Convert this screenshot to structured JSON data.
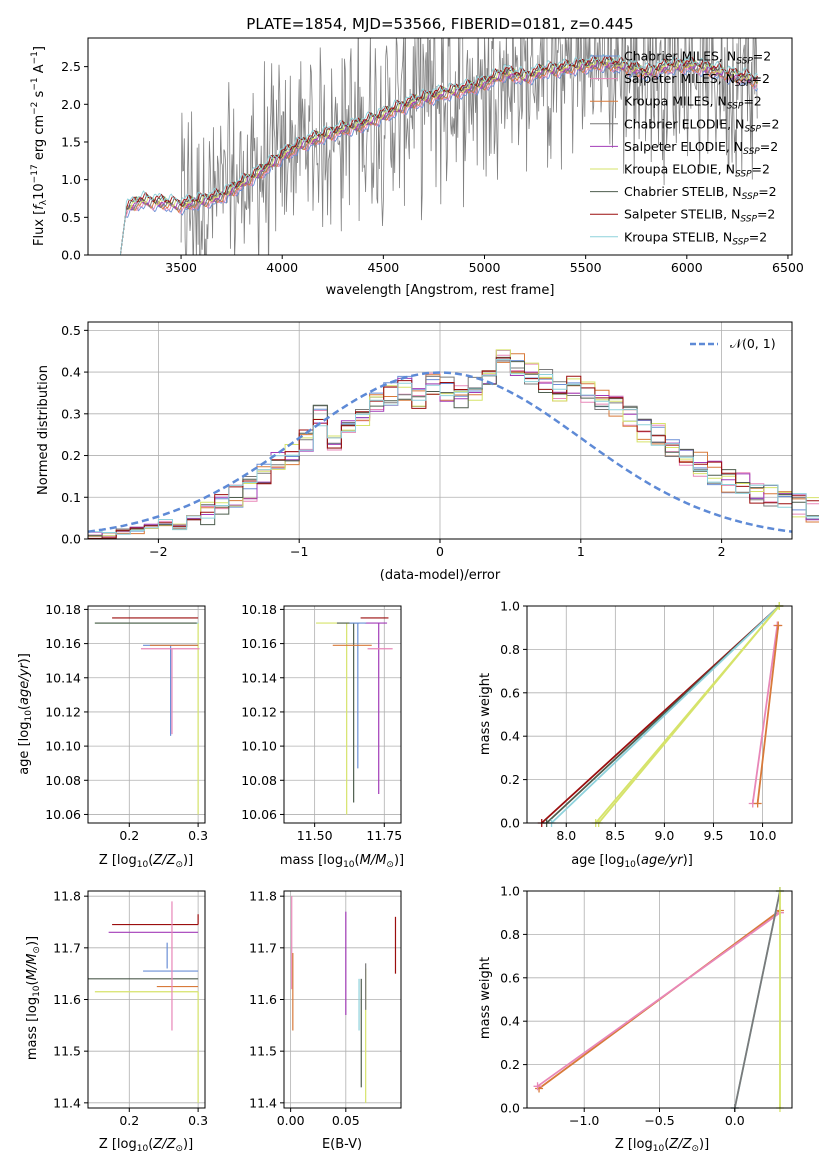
{
  "colors": {
    "chabrier_miles": "#6b8fd6",
    "salpeter_miles": "#e887b8",
    "kroupa_miles": "#d87a3a",
    "chabrier_elodie": "#7a7a7a",
    "salpeter_elodie": "#a23cb8",
    "kroupa_elodie": "#d6e36a",
    "chabrier_stelib": "#4e5d4e",
    "salpeter_stelib": "#9b0e0e",
    "kroupa_stelib": "#8ed2dc",
    "gaussian": "#5e8ad6",
    "data": "#808080"
  },
  "chart_data": [
    {
      "id": "spectrum",
      "type": "line",
      "title": "PLATE=1854, MJD=53566, FIBERID=0181, z=0.445",
      "xlabel": "wavelength [Angstrom, rest frame]",
      "ylabel": "Flux [f_λ 10^-17 erg cm^-2 s^-1 A^-1]",
      "xlim": [
        3040,
        6520
      ],
      "ylim": [
        0,
        2.88
      ],
      "xticks": [
        "3500",
        "4000",
        "4500",
        "5000",
        "5500",
        "6000",
        "6500"
      ],
      "yticks": [
        "0.0",
        "0.5",
        "1.0",
        "1.5",
        "2.0",
        "2.5"
      ],
      "grid": false,
      "legend_position": "top-right",
      "legend": [
        "Chabrier MILES, N_SSP=2",
        "Salpeter MILES, N_SSP=2",
        "Kroupa MILES, N_SSP=2",
        "Chabrier ELODIE, N_SSP=2",
        "Salpeter ELODIE, N_SSP=2",
        "Kroupa ELODIE, N_SSP=2",
        "Chabrier STELIB, N_SSP=2",
        "Salpeter STELIB, N_SSP=2",
        "Kroupa STELIB, N_SSP=2"
      ],
      "model_continuum": {
        "x": [
          3200,
          3230,
          3300,
          3400,
          3500,
          3600,
          3700,
          3800,
          3900,
          4000,
          4100,
          4200,
          4300,
          4400,
          4500,
          4600,
          4700,
          4800,
          4900,
          5000,
          5100,
          5200,
          5300,
          5400,
          5500,
          5600,
          5700,
          5800,
          5900,
          6000,
          6100,
          6200,
          6300,
          6350
        ],
        "y": [
          0.0,
          0.62,
          0.72,
          0.7,
          0.66,
          0.72,
          0.78,
          0.95,
          1.12,
          1.32,
          1.48,
          1.58,
          1.67,
          1.74,
          1.86,
          1.98,
          2.08,
          2.15,
          2.2,
          2.28,
          2.42,
          2.36,
          2.45,
          2.48,
          2.52,
          2.55,
          2.5,
          2.42,
          2.5,
          2.52,
          2.48,
          2.4,
          2.35,
          2.3
        ]
      }
    },
    {
      "id": "residuals",
      "type": "bar",
      "xlabel": "(data-model)/error",
      "ylabel": "Normed distribution",
      "xlim": [
        -2.5,
        2.5
      ],
      "ylim": [
        0,
        0.52
      ],
      "xticks": [
        "−2",
        "−1",
        "0",
        "1",
        "2"
      ],
      "yticks": [
        "0.0",
        "0.1",
        "0.2",
        "0.3",
        "0.4",
        "0.5"
      ],
      "grid": true,
      "legend_position": "top-right",
      "legend": [
        "𝒩(0, 1)"
      ],
      "bin_edges_start": -2.5,
      "bin_width": 0.1,
      "histogram_mean": [
        0.01,
        0.01,
        0.02,
        0.02,
        0.03,
        0.04,
        0.03,
        0.05,
        0.06,
        0.08,
        0.1,
        0.12,
        0.15,
        0.18,
        0.2,
        0.24,
        0.3,
        0.22,
        0.27,
        0.3,
        0.33,
        0.35,
        0.36,
        0.34,
        0.37,
        0.36,
        0.34,
        0.36,
        0.4,
        0.43,
        0.42,
        0.4,
        0.38,
        0.36,
        0.37,
        0.35,
        0.33,
        0.32,
        0.29,
        0.26,
        0.25,
        0.22,
        0.2,
        0.18,
        0.16,
        0.14,
        0.13,
        0.11,
        0.1,
        0.09,
        0.08,
        0.07,
        0.06,
        0.05
      ]
    },
    {
      "id": "age_vs_Z",
      "type": "scatter",
      "xlabel": "Z [log10(Z/Z⊙)]",
      "ylabel": "age [log10(age/yr)]",
      "xlim": [
        0.14,
        0.31
      ],
      "ylim": [
        10.055,
        10.182
      ],
      "xticks": [
        "0.2",
        "0.3"
      ],
      "xtick_values": [
        0.2,
        0.3
      ],
      "yticks": [
        "10.06",
        "10.08",
        "10.10",
        "10.12",
        "10.14",
        "10.16",
        "10.18"
      ],
      "ytick_values": [
        10.06,
        10.08,
        10.1,
        10.12,
        10.14,
        10.16,
        10.18
      ],
      "grid": true,
      "crosses": [
        {
          "model": "salpeter_stelib",
          "x": 0.3,
          "y": 10.175,
          "xerr": [
            0.125,
            0.0
          ],
          "yerr": [
            0.0,
            0.0
          ]
        },
        {
          "model": "kroupa_elodie",
          "x": 0.3,
          "y": 10.172,
          "xerr": [
            0.15,
            0.0
          ],
          "yerr": [
            0.112,
            0.0
          ]
        },
        {
          "model": "kroupa_stelib",
          "x": 0.3,
          "y": 10.172,
          "xerr": [
            0.15,
            0.0
          ],
          "yerr": [
            0.0,
            0.0
          ]
        },
        {
          "model": "chabrier_stelib",
          "x": 0.298,
          "y": 10.172,
          "xerr": [
            0.148,
            0.0
          ],
          "yerr": [
            0.0,
            0.0
          ]
        },
        {
          "model": "chabrier_miles",
          "x": 0.26,
          "y": 10.159,
          "xerr": [
            0.04,
            0.04
          ],
          "yerr": [
            0.053,
            0.0
          ]
        },
        {
          "model": "salpeter_miles",
          "x": 0.262,
          "y": 10.157,
          "xerr": [
            0.045,
            0.04
          ],
          "yerr": [
            0.05,
            0.0
          ]
        },
        {
          "model": "kroupa_miles",
          "x": 0.26,
          "y": 10.159,
          "xerr": [
            0.03,
            0.04
          ],
          "yerr": [
            0.0,
            0.0
          ]
        }
      ]
    },
    {
      "id": "age_vs_mass",
      "type": "scatter",
      "xlabel": "mass [log10(M/M⊙)]",
      "ylabel": "",
      "xlim": [
        11.39,
        11.81
      ],
      "ylim": [
        10.055,
        10.182
      ],
      "xticks": [
        "11.50",
        "11.75"
      ],
      "xtick_values": [
        11.5,
        11.75
      ],
      "yticks": [
        "10.06",
        "10.08",
        "10.10",
        "10.12",
        "10.14",
        "10.16",
        "10.18"
      ],
      "ytick_values": [
        10.06,
        10.08,
        10.1,
        10.12,
        10.14,
        10.16,
        10.18
      ],
      "grid": true,
      "crosses": [
        {
          "model": "salpeter_stelib",
          "x": 11.745,
          "y": 10.175,
          "xerr": [
            0.08,
            0.02
          ],
          "yerr": [
            0.0,
            0.0
          ]
        },
        {
          "model": "kroupa_elodie",
          "x": 11.615,
          "y": 10.172,
          "xerr": [
            0.11,
            0.02
          ],
          "yerr": [
            0.112,
            0.0
          ]
        },
        {
          "model": "salpeter_elodie",
          "x": 11.73,
          "y": 10.172,
          "xerr": [
            0.05,
            0.03
          ],
          "yerr": [
            0.1,
            0.0
          ]
        },
        {
          "model": "chabrier_stelib",
          "x": 11.64,
          "y": 10.172,
          "xerr": [
            0.06,
            0.02
          ],
          "yerr": [
            0.105,
            0.0
          ]
        },
        {
          "model": "chabrier_miles",
          "x": 11.655,
          "y": 10.172,
          "xerr": [
            0.03,
            0.03
          ],
          "yerr": [
            0.085,
            0.0
          ]
        },
        {
          "model": "kroupa_miles",
          "x": 11.625,
          "y": 10.159,
          "xerr": [
            0.06,
            0.08
          ],
          "yerr": [
            0.0,
            0.0
          ]
        },
        {
          "model": "salpeter_miles",
          "x": 11.72,
          "y": 10.157,
          "xerr": [
            0.03,
            0.06
          ],
          "yerr": [
            0.0,
            0.0
          ]
        }
      ]
    },
    {
      "id": "massweight_vs_age",
      "type": "line",
      "xlabel": "age [log10(age/yr)]",
      "ylabel": "mass weight",
      "xlim": [
        7.6,
        10.3
      ],
      "ylim": [
        0.0,
        1.0
      ],
      "xticks": [
        "8.0",
        "8.5",
        "9.0",
        "9.5",
        "10.0"
      ],
      "xtick_values": [
        8.0,
        8.5,
        9.0,
        9.5,
        10.0
      ],
      "yticks": [
        "0.0",
        "0.2",
        "0.4",
        "0.6",
        "0.8",
        "1.0"
      ],
      "ytick_values": [
        0.0,
        0.2,
        0.4,
        0.6,
        0.8,
        1.0
      ],
      "grid": true,
      "series": [
        {
          "model": "salpeter_stelib",
          "x": [
            7.75,
            10.17
          ],
          "y": [
            0.0,
            1.0
          ]
        },
        {
          "model": "chabrier_stelib",
          "x": [
            7.8,
            10.17
          ],
          "y": [
            0.0,
            1.0
          ]
        },
        {
          "model": "kroupa_stelib",
          "x": [
            7.85,
            10.17
          ],
          "y": [
            0.0,
            1.0
          ]
        },
        {
          "model": "kroupa_elodie",
          "x": [
            8.3,
            10.17
          ],
          "y": [
            0.0,
            1.0
          ]
        },
        {
          "model": "kroupa_elodie",
          "x": [
            8.33,
            10.17
          ],
          "y": [
            0.0,
            1.0
          ]
        },
        {
          "model": "salpeter_miles",
          "x": [
            9.9,
            10.15
          ],
          "y": [
            0.09,
            0.91
          ]
        },
        {
          "model": "kroupa_miles",
          "x": [
            9.95,
            10.16
          ],
          "y": [
            0.09,
            0.91
          ]
        }
      ]
    },
    {
      "id": "mass_vs_Z",
      "type": "scatter",
      "xlabel": "Z [log10(Z/Z⊙)]",
      "ylabel": "mass [log10(M/M⊙)]",
      "xlim": [
        0.14,
        0.31
      ],
      "ylim": [
        11.39,
        11.81
      ],
      "xticks": [
        "0.2",
        "0.3"
      ],
      "xtick_values": [
        0.2,
        0.3
      ],
      "yticks": [
        "11.4",
        "11.5",
        "11.6",
        "11.7",
        "11.8"
      ],
      "ytick_values": [
        11.4,
        11.5,
        11.6,
        11.7,
        11.8
      ],
      "grid": true,
      "crosses": [
        {
          "model": "salpeter_stelib",
          "x": 0.3,
          "y": 11.745,
          "xerr": [
            0.125,
            0.0
          ],
          "yerr": [
            0.0,
            0.02
          ]
        },
        {
          "model": "salpeter_elodie",
          "x": 0.3,
          "y": 11.73,
          "xerr": [
            0.13,
            0.0
          ],
          "yerr": [
            0.0,
            0.0
          ]
        },
        {
          "model": "chabrier_miles",
          "x": 0.3,
          "y": 11.655,
          "xerr": [
            0.08,
            0.0
          ],
          "yerr": [
            0.0,
            0.0
          ]
        },
        {
          "model": "chabrier_stelib",
          "x": 0.3,
          "y": 11.64,
          "xerr": [
            0.16,
            0.0
          ],
          "yerr": [
            0.0,
            0.0
          ]
        },
        {
          "model": "kroupa_miles",
          "x": 0.3,
          "y": 11.625,
          "xerr": [
            0.06,
            0.0
          ],
          "yerr": [
            0.0,
            0.0
          ]
        },
        {
          "model": "kroupa_elodie",
          "x": 0.3,
          "y": 11.615,
          "xerr": [
            0.15,
            0.0
          ],
          "yerr": [
            0.215,
            0.0
          ]
        },
        {
          "model": "salpeter_miles",
          "x": 0.262,
          "y": 11.72,
          "xerr": [
            0.0,
            0.0
          ],
          "yerr": [
            0.18,
            0.07
          ]
        },
        {
          "model": "chabrier_miles",
          "x": 0.255,
          "y": 11.66,
          "xerr": [
            0.0,
            0.0
          ],
          "yerr": [
            0.0,
            0.05
          ]
        }
      ]
    },
    {
      "id": "mass_vs_EBV",
      "type": "scatter",
      "xlabel": "E(B-V)",
      "ylabel": "",
      "xlim": [
        -0.006,
        0.1
      ],
      "ylim": [
        11.39,
        11.81
      ],
      "xticks": [
        "0.00",
        "0.05"
      ],
      "xtick_values": [
        0.0,
        0.05
      ],
      "yticks": [
        "11.4",
        "11.5",
        "11.6",
        "11.7",
        "11.8"
      ],
      "ytick_values": [
        11.4,
        11.5,
        11.6,
        11.7,
        11.8
      ],
      "grid": true,
      "vlines": [
        {
          "model": "salpeter_miles",
          "x": 0.001,
          "y": [
            11.62,
            11.8
          ]
        },
        {
          "model": "kroupa_miles",
          "x": 0.002,
          "y": [
            11.54,
            11.69
          ]
        },
        {
          "model": "salpeter_elodie",
          "x": 0.05,
          "y": [
            11.57,
            11.77
          ]
        },
        {
          "model": "kroupa_stelib",
          "x": 0.062,
          "y": [
            11.54,
            11.64
          ]
        },
        {
          "model": "chabrier_stelib",
          "x": 0.064,
          "y": [
            11.43,
            11.64
          ]
        },
        {
          "model": "kroupa_elodie",
          "x": 0.068,
          "y": [
            11.4,
            11.66
          ]
        },
        {
          "model": "chabrier_elodie",
          "x": 0.068,
          "y": [
            11.58,
            11.67
          ]
        },
        {
          "model": "salpeter_stelib",
          "x": 0.095,
          "y": [
            11.65,
            11.76
          ]
        }
      ]
    },
    {
      "id": "massweight_vs_Z",
      "type": "line",
      "xlabel": "Z [log10(Z/Z⊙)]",
      "ylabel": "mass weight",
      "xlim": [
        -1.38,
        0.38
      ],
      "ylim": [
        0.0,
        1.0
      ],
      "xticks": [
        "−1.0",
        "−0.5",
        "0.0"
      ],
      "xtick_values": [
        -1.0,
        -0.5,
        0.0
      ],
      "yticks": [
        "0.0",
        "0.2",
        "0.4",
        "0.6",
        "0.8",
        "1.0"
      ],
      "ytick_values": [
        0.0,
        0.2,
        0.4,
        0.6,
        0.8,
        1.0
      ],
      "grid": true,
      "series": [
        {
          "model": "kroupa_miles",
          "x": [
            -1.3,
            0.3
          ],
          "y": [
            0.09,
            0.91
          ]
        },
        {
          "model": "salpeter_miles",
          "x": [
            -1.31,
            0.3
          ],
          "y": [
            0.1,
            0.9
          ]
        },
        {
          "model": "kroupa_stelib",
          "x": [
            0.0,
            0.3
          ],
          "y": [
            0.0,
            1.0
          ]
        },
        {
          "model": "chabrier_elodie",
          "x": [
            0.0,
            0.3
          ],
          "y": [
            0.0,
            1.0
          ]
        },
        {
          "model": "kroupa_elodie",
          "x": [
            0.3,
            0.3
          ],
          "y": [
            0.0,
            1.0
          ]
        }
      ]
    }
  ]
}
